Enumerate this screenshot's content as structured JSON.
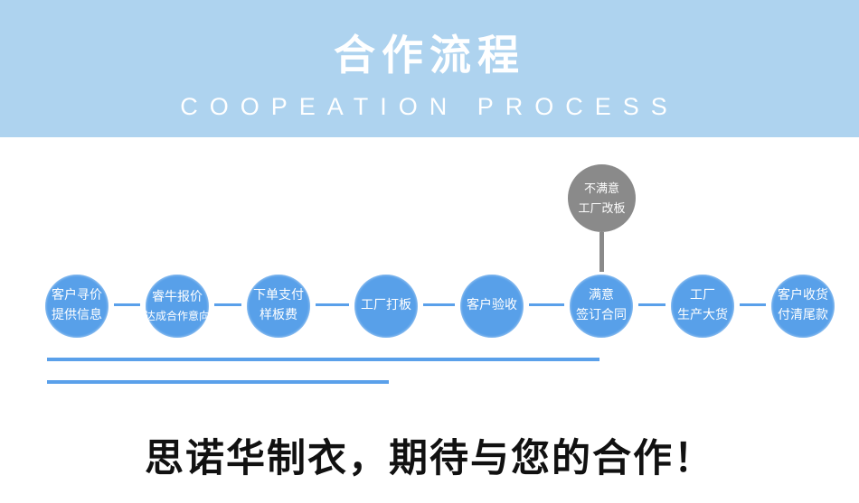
{
  "colors": {
    "banner": "#aed3ef",
    "title": "#ffffff",
    "subtitle": "#ffffff",
    "node": "#58a0e9",
    "connector": "#5aa0ea",
    "reject": "#8a8a8a",
    "reject_connector": "#8a8a8a",
    "divider": "#5aa0ea",
    "slogan": "#111111"
  },
  "header": {
    "title": "合作流程",
    "subtitle": "COOPEATION PROCESS"
  },
  "flow": {
    "reject_node": {
      "lines": [
        "不满意",
        "工厂改板"
      ]
    },
    "nodes": [
      {
        "lines": [
          "客户寻价",
          "提供信息"
        ]
      },
      {
        "lines": [
          "睿牛报价",
          "达成合作意向"
        ]
      },
      {
        "lines": [
          "下单支付",
          "样板费"
        ]
      },
      {
        "lines": [
          "工厂打板"
        ]
      },
      {
        "lines": [
          "客户验收"
        ]
      },
      {
        "lines": [
          "满意",
          "签订合同"
        ]
      },
      {
        "lines": [
          "工厂",
          "生产大货"
        ]
      },
      {
        "lines": [
          "客户收货",
          "付清尾款"
        ]
      }
    ]
  },
  "footer": {
    "slogan": "思诺华制衣，期待与您的合作！"
  }
}
